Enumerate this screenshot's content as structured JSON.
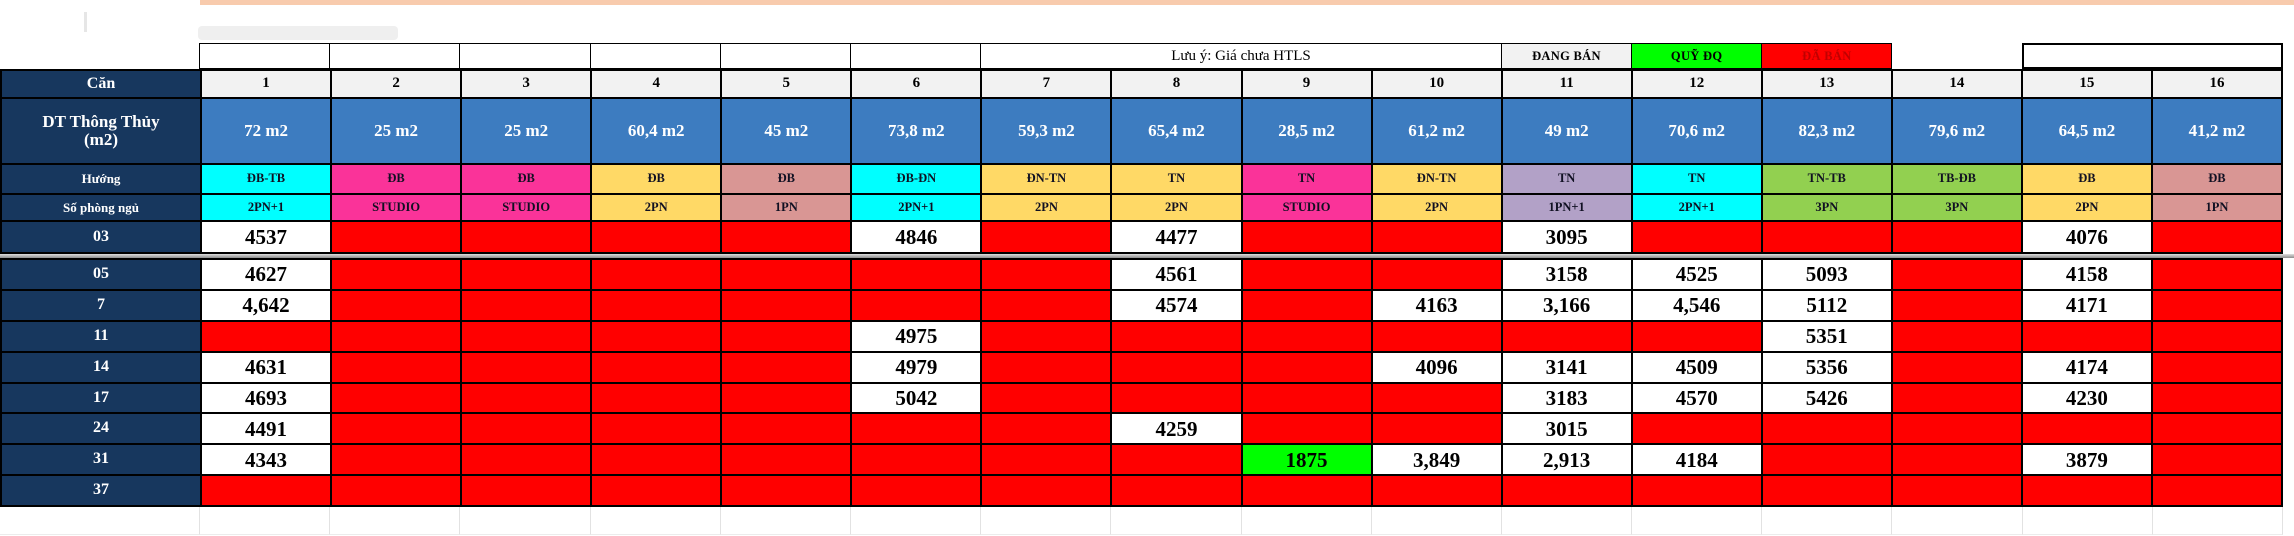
{
  "note": "Lưu ý: Giá chưa HTLS",
  "legend": [
    {
      "label": "ĐANG BÁN",
      "bg": "#F2F2F2",
      "fg": "#000000"
    },
    {
      "label": "QUỸ ĐQ",
      "bg": "#00FF00",
      "fg": "#000000"
    },
    {
      "label": "ĐÃ BÁN",
      "bg": "#FF0000",
      "fg": "#C00000"
    }
  ],
  "headers": {
    "corner": "Căn",
    "area": "DT Thông Thủy\n(m2)",
    "direction": "Hướng",
    "bedrooms": "Số phòng ngủ"
  },
  "columns": [
    {
      "no": "1",
      "area": "72 m2",
      "dir": "ĐB-TB",
      "bed": "2PN+1",
      "color": "cyan"
    },
    {
      "no": "2",
      "area": "25 m2",
      "dir": "ĐB",
      "bed": "STUDIO",
      "color": "pink"
    },
    {
      "no": "3",
      "area": "25 m2",
      "dir": "ĐB",
      "bed": "STUDIO",
      "color": "pink"
    },
    {
      "no": "4",
      "area": "60,4 m2",
      "dir": "ĐB",
      "bed": "2PN",
      "color": "yellow"
    },
    {
      "no": "5",
      "area": "45 m2",
      "dir": "ĐB",
      "bed": "1PN",
      "color": "rose"
    },
    {
      "no": "6",
      "area": "73,8 m2",
      "dir": "ĐB-ĐN",
      "bed": "2PN+1",
      "color": "cyan"
    },
    {
      "no": "7",
      "area": "59,3 m2",
      "dir": "ĐN-TN",
      "bed": "2PN",
      "color": "yellow"
    },
    {
      "no": "8",
      "area": "65,4 m2",
      "dir": "TN",
      "bed": "2PN",
      "color": "yellow"
    },
    {
      "no": "9",
      "area": "28,5 m2",
      "dir": "TN",
      "bed": "STUDIO",
      "color": "pink"
    },
    {
      "no": "10",
      "area": "61,2 m2",
      "dir": "ĐN-TN",
      "bed": "2PN",
      "color": "yellow"
    },
    {
      "no": "11",
      "area": "49 m2",
      "dir": "TN",
      "bed": "1PN+1",
      "color": "lavender"
    },
    {
      "no": "12",
      "area": "70,6 m2",
      "dir": "TN",
      "bed": "2PN+1",
      "color": "cyan"
    },
    {
      "no": "13",
      "area": "82,3 m2",
      "dir": "TN-TB",
      "bed": "3PN",
      "color": "green"
    },
    {
      "no": "14",
      "area": "79,6 m2",
      "dir": "TB-ĐB",
      "bed": "3PN",
      "color": "green"
    },
    {
      "no": "15",
      "area": "64,5 m2",
      "dir": "ĐB",
      "bed": "2PN",
      "color": "yellow"
    },
    {
      "no": "16",
      "area": "41,2 m2",
      "dir": "ĐB",
      "bed": "1PN",
      "color": "rose"
    }
  ],
  "rows": [
    {
      "label": "03",
      "cells": [
        "4537",
        null,
        null,
        null,
        null,
        "4846",
        null,
        "4477",
        null,
        null,
        "3095",
        null,
        null,
        null,
        "4076",
        null
      ]
    },
    {
      "label": "05",
      "cells": [
        "4627",
        null,
        null,
        null,
        null,
        null,
        null,
        "4561",
        null,
        null,
        "3158",
        "4525",
        "5093",
        null,
        "4158",
        null
      ]
    },
    {
      "label": "7",
      "cells": [
        "4,642",
        null,
        null,
        null,
        null,
        null,
        null,
        "4574",
        null,
        "4163",
        "3,166",
        "4,546",
        "5112",
        null,
        "4171",
        null
      ]
    },
    {
      "label": "11",
      "cells": [
        null,
        null,
        null,
        null,
        null,
        "4975",
        null,
        null,
        null,
        null,
        null,
        null,
        "5351",
        null,
        null,
        null
      ]
    },
    {
      "label": "14",
      "cells": [
        "4631",
        null,
        null,
        null,
        null,
        "4979",
        null,
        null,
        null,
        "4096",
        "3141",
        "4509",
        "5356",
        null,
        "4174",
        null
      ]
    },
    {
      "label": "17",
      "cells": [
        "4693",
        null,
        null,
        null,
        null,
        "5042",
        null,
        null,
        null,
        null,
        "3183",
        "4570",
        "5426",
        null,
        "4230",
        null
      ]
    },
    {
      "label": "24",
      "cells": [
        "4491",
        null,
        null,
        null,
        null,
        null,
        null,
        "4259",
        null,
        null,
        "3015",
        null,
        null,
        null,
        null,
        null
      ]
    },
    {
      "label": "31",
      "cells": [
        "4343",
        null,
        null,
        null,
        null,
        null,
        null,
        null,
        {
          "v": "1875",
          "bg": "quydo"
        },
        "3,849",
        "2,913",
        "4184",
        null,
        null,
        "3879",
        null
      ]
    },
    {
      "label": "37",
      "cells": [
        null,
        null,
        null,
        null,
        null,
        null,
        null,
        null,
        null,
        null,
        null,
        null,
        null,
        null,
        null,
        null
      ]
    }
  ],
  "palette": {
    "navy": "#17375E",
    "navyText": "#FFFFFF",
    "headerGray": "#F2F2F2",
    "areaBlue": "#3D7CC0",
    "sold": "#FF0000",
    "available": "#FFFFFF",
    "quydo": "#00FF00",
    "cyan": "#00FFFF",
    "pink": "#FA3399",
    "yellow": "#FFD966",
    "rose": "#D99694",
    "lavender": "#B2A1C7",
    "green": "#92D050",
    "peachBar": "#F8CBAD",
    "darkRedText": "#C00000"
  }
}
